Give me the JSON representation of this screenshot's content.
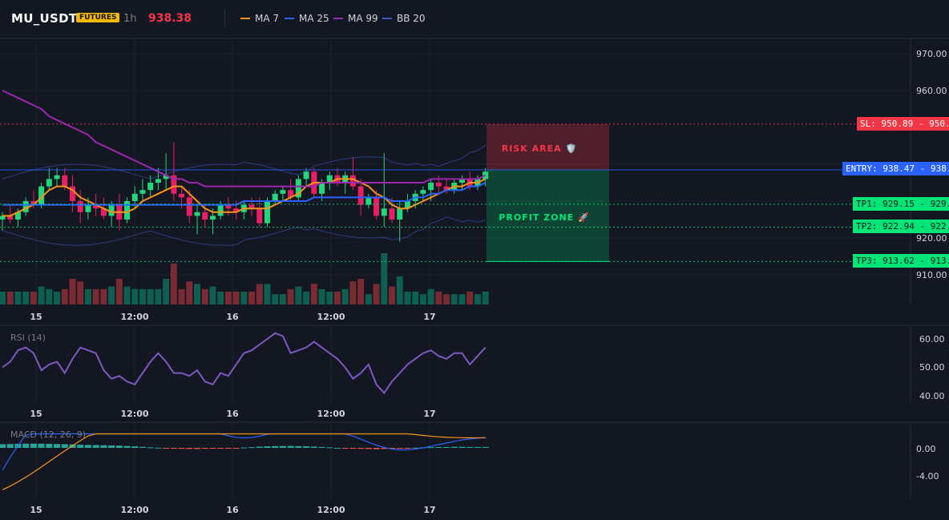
{
  "header": {
    "symbol": "MU_USDT",
    "market_badge": "FUTURES",
    "timeframe": "1h",
    "last_price": "938.38",
    "indicators": [
      {
        "label": "MA 7",
        "color": "#f7931a"
      },
      {
        "label": "MA 25",
        "color": "#2962ff"
      },
      {
        "label": "MA 99",
        "color": "#9c27b0"
      },
      {
        "label": "BB 20",
        "color": "#3a5bbf"
      }
    ]
  },
  "main_axis": {
    "ticks": [
      "970.00",
      "960.00",
      "920.00",
      "910.00"
    ],
    "tick_values": [
      970,
      960,
      920,
      910
    ]
  },
  "time_axis": {
    "labels": [
      "15",
      "12:00",
      "16",
      "12:00",
      "17"
    ]
  },
  "zones": {
    "risk_label": "RISK AREA 🛡️",
    "profit_label": "PROFIT ZONE 🚀"
  },
  "levels": {
    "sl": {
      "label": "SL: 950.89",
      "value_text": "950.89",
      "value": 950.89,
      "color": "#f23645"
    },
    "entry": {
      "label": "ENTRY: 938.47",
      "value_text": "938.47",
      "value": 938.47,
      "color": "#2962ff"
    },
    "tp1": {
      "label": "TP1: 929.15",
      "value_text": "929.15",
      "value": 929.15,
      "color": "#00e676"
    },
    "tp2": {
      "label": "TP2: 922.94",
      "value_text": "922.94",
      "value": 922.94,
      "color": "#00e676"
    },
    "tp3": {
      "label": "TP3: 913.62",
      "value_text": "913.62",
      "value": 913.62,
      "color": "#00e676"
    }
  },
  "rsi": {
    "label": "RSI (14)",
    "ticks": [
      "60.00",
      "50.00",
      "40.00"
    ],
    "tick_values": [
      60,
      50,
      40
    ]
  },
  "macd": {
    "label": "MACD (12, 26, 9)",
    "ticks": [
      "0.00",
      "-4.00"
    ],
    "tick_values": [
      0,
      -4
    ]
  },
  "chart_data": [
    {
      "type": "candlestick",
      "series": [
        {
          "name": "MU_USDT",
          "values": [
            [
              925,
              927,
              922,
              926
            ],
            [
              926,
              929,
              924,
              925
            ],
            [
              925,
              928,
              923,
              927
            ],
            [
              927,
              931,
              926,
              930
            ],
            [
              930,
              933,
              928,
              929
            ],
            [
              929,
              935,
              928,
              934
            ],
            [
              934,
              939,
              933,
              936
            ],
            [
              936,
              939,
              934,
              937
            ],
            [
              937,
              939,
              933,
              934
            ],
            [
              934,
              937,
              927,
              930
            ],
            [
              930,
              933,
              924,
              927
            ],
            [
              927,
              931,
              925,
              929
            ],
            [
              929,
              932,
              926,
              928
            ],
            [
              928,
              931,
              925,
              926
            ],
            [
              926,
              930,
              923,
              929
            ],
            [
              929,
              932,
              922,
              925
            ],
            [
              925,
              931,
              924,
              930
            ],
            [
              930,
              934,
              928,
              932
            ],
            [
              932,
              936,
              930,
              933
            ],
            [
              933,
              937,
              931,
              935
            ],
            [
              935,
              939,
              933,
              936
            ],
            [
              936,
              943,
              933,
              937
            ],
            [
              937,
              946,
              930,
              932
            ],
            [
              932,
              934,
              928,
              931
            ],
            [
              931,
              933,
              924,
              926
            ],
            [
              926,
              929,
              921,
              927
            ],
            [
              927,
              929,
              923,
              925
            ],
            [
              925,
              928,
              921,
              926
            ],
            [
              926,
              930,
              925,
              929
            ],
            [
              929,
              931,
              926,
              928
            ],
            [
              928,
              930,
              925,
              927
            ],
            [
              927,
              930,
              925,
              929
            ],
            [
              929,
              931,
              926,
              928
            ],
            [
              928,
              931,
              923,
              924
            ],
            [
              924,
              931,
              923,
              930
            ],
            [
              930,
              933,
              929,
              932
            ],
            [
              932,
              934,
              930,
              933
            ],
            [
              933,
              936,
              930,
              931
            ],
            [
              931,
              937,
              930,
              936
            ],
            [
              936,
              939,
              934,
              938
            ],
            [
              938,
              939,
              931,
              932
            ],
            [
              932,
              936,
              930,
              935
            ],
            [
              935,
              938,
              933,
              937
            ],
            [
              937,
              939,
              934,
              935
            ],
            [
              935,
              938,
              932,
              937
            ],
            [
              937,
              942,
              933,
              934
            ],
            [
              934,
              936,
              926,
              929
            ],
            [
              929,
              932,
              928,
              931
            ],
            [
              931,
              933,
              925,
              926
            ],
            [
              926,
              943,
              923,
              928
            ],
            [
              928,
              931,
              924,
              925
            ],
            [
              925,
              930,
              919,
              928
            ],
            [
              928,
              932,
              927,
              930
            ],
            [
              930,
              933,
              928,
              932
            ],
            [
              932,
              934,
              930,
              933
            ],
            [
              933,
              936,
              930,
              935
            ],
            [
              935,
              937,
              932,
              934
            ],
            [
              934,
              936,
              932,
              933
            ],
            [
              933,
              936,
              932,
              935
            ],
            [
              935,
              937,
              933,
              936
            ],
            [
              936,
              938,
              933,
              934
            ],
            [
              934,
              937,
              933,
              936
            ],
            [
              936,
              939,
              934,
              938
            ]
          ]
        }
      ]
    },
    {
      "type": "line",
      "series": [
        {
          "name": "MA 7",
          "values": [
            926,
            926,
            927,
            928,
            929,
            931,
            933,
            934,
            934,
            933,
            931,
            930,
            929,
            928,
            927,
            927,
            927,
            928,
            930,
            931,
            932,
            933,
            934,
            934,
            932,
            930,
            928,
            927,
            927,
            927,
            927,
            928,
            928,
            928,
            928,
            929,
            930,
            931,
            932,
            934,
            935,
            935,
            935,
            936,
            936,
            936,
            935,
            934,
            932,
            931,
            929,
            928,
            928,
            929,
            930,
            931,
            932,
            933,
            934,
            934,
            935,
            935,
            936
          ]
        },
        {
          "name": "MA 25",
          "values": [
            929,
            929,
            929,
            929,
            929,
            929,
            929,
            929,
            929,
            929,
            929,
            929,
            929,
            929,
            929,
            929,
            929,
            929,
            929,
            929,
            929,
            929,
            929,
            929,
            929,
            929,
            929,
            929,
            929,
            929,
            929,
            930,
            930,
            930,
            930,
            930,
            930,
            930,
            930,
            930,
            931,
            931,
            931,
            931,
            931,
            931,
            931,
            931,
            931,
            931,
            930,
            930,
            930,
            931,
            931,
            932,
            932,
            933,
            933,
            933,
            934,
            934,
            935
          ]
        },
        {
          "name": "MA 99",
          "values": [
            960,
            959,
            958,
            957,
            956,
            955,
            953,
            952,
            951,
            950,
            949,
            948,
            946,
            945,
            944,
            943,
            942,
            941,
            940,
            939,
            938,
            937,
            936,
            936,
            935,
            935,
            934,
            934,
            934,
            934,
            934,
            934,
            934,
            934,
            934,
            934,
            934,
            934,
            934,
            934,
            934,
            935,
            935,
            935,
            935,
            935,
            935,
            935,
            935,
            935,
            935,
            935,
            935,
            935,
            935,
            936,
            936,
            936,
            936,
            936,
            936,
            936,
            937
          ]
        }
      ]
    },
    {
      "type": "line",
      "series": [
        {
          "name": "RSI (14)",
          "values": [
            50,
            52,
            56,
            57,
            55,
            49,
            51,
            52,
            48,
            53,
            57,
            56,
            55,
            49,
            46,
            47,
            45,
            44,
            48,
            52,
            55,
            52,
            48,
            48,
            47,
            49,
            45,
            44,
            48,
            47,
            51,
            55,
            56,
            58,
            60,
            62,
            61,
            55,
            56,
            57,
            59,
            57,
            55,
            53,
            50,
            46,
            48,
            51,
            44,
            41,
            45,
            48,
            51,
            53,
            55,
            56,
            54,
            53,
            55,
            55,
            51,
            54,
            57
          ]
        }
      ]
    },
    {
      "type": "bar",
      "series": [
        {
          "name": "MACD (12, 26, 9)",
          "values": [
            2.1,
            2.2,
            2.3,
            2.4,
            2.4,
            2.4,
            2.3,
            2.2,
            2.1,
            2.0,
            1.8,
            1.7,
            1.6,
            1.5,
            1.4,
            1.3,
            1.1,
            0.9,
            0.6,
            0.3,
            0.1,
            -0.2,
            -0.4,
            -0.5,
            -0.6,
            -0.6,
            -0.5,
            -0.4,
            -0.3,
            -0.2,
            -0.1,
            0.2,
            0.4,
            0.7,
            0.9,
            1.0,
            1.1,
            1.1,
            1.0,
            0.9,
            0.7,
            0.5,
            0.3,
            0.0,
            -0.2,
            -0.4,
            -0.5,
            -0.6,
            -0.7,
            -0.6,
            -0.5,
            -0.3,
            -0.1,
            0.1,
            0.3,
            0.4,
            0.5,
            0.5,
            0.6,
            0.6,
            0.5,
            0.5,
            0.5
          ]
        }
      ]
    }
  ]
}
